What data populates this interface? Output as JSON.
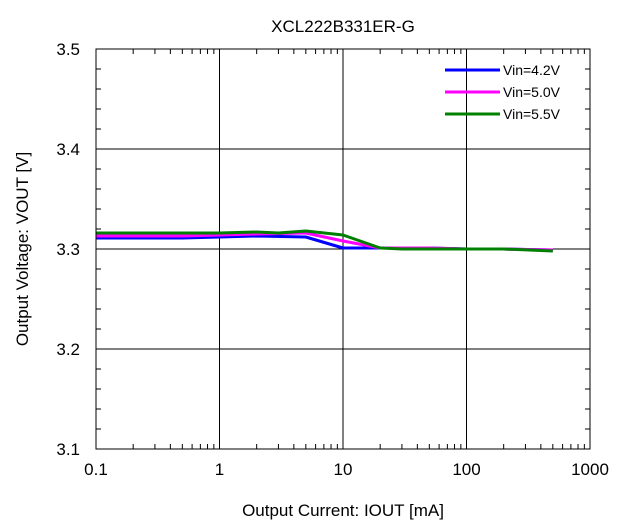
{
  "chart_data": {
    "type": "line",
    "title": "XCL222B331ER-G",
    "xlabel": "Output Current: IOUT [mA]",
    "ylabel": "Output Voltage: VOUT [V]",
    "x_scale": "log",
    "xlim": [
      0.1,
      1000
    ],
    "ylim": [
      3.1,
      3.5
    ],
    "x_ticks": [
      "0.1",
      "1",
      "10",
      "100",
      "1000"
    ],
    "y_ticks": [
      "3.1",
      "3.2",
      "3.3",
      "3.4",
      "3.5"
    ],
    "grid": true,
    "legend_position": "top-right",
    "series": [
      {
        "name": "Vin=4.2V",
        "color": "#0000ff",
        "points": [
          [
            0.1,
            3.311
          ],
          [
            0.5,
            3.311
          ],
          [
            1,
            3.312
          ],
          [
            2,
            3.313
          ],
          [
            5,
            3.312
          ],
          [
            10,
            3.301
          ],
          [
            20,
            3.301
          ],
          [
            50,
            3.301
          ],
          [
            100,
            3.3
          ],
          [
            200,
            3.3
          ],
          [
            500,
            3.299
          ]
        ]
      },
      {
        "name": "Vin=5.0V",
        "color": "#ff00ff",
        "points": [
          [
            0.1,
            3.313
          ],
          [
            0.5,
            3.313
          ],
          [
            1,
            3.314
          ],
          [
            2,
            3.315
          ],
          [
            5,
            3.316
          ],
          [
            10,
            3.308
          ],
          [
            20,
            3.301
          ],
          [
            50,
            3.301
          ],
          [
            100,
            3.3
          ],
          [
            200,
            3.3
          ],
          [
            500,
            3.299
          ]
        ]
      },
      {
        "name": "Vin=5.5V",
        "color": "#008000",
        "points": [
          [
            0.1,
            3.316
          ],
          [
            0.5,
            3.316
          ],
          [
            1,
            3.316
          ],
          [
            2,
            3.317
          ],
          [
            3,
            3.316
          ],
          [
            5,
            3.318
          ],
          [
            10,
            3.314
          ],
          [
            20,
            3.301
          ],
          [
            30,
            3.3
          ],
          [
            50,
            3.3
          ],
          [
            100,
            3.3
          ],
          [
            200,
            3.3
          ],
          [
            500,
            3.298
          ]
        ]
      }
    ]
  }
}
